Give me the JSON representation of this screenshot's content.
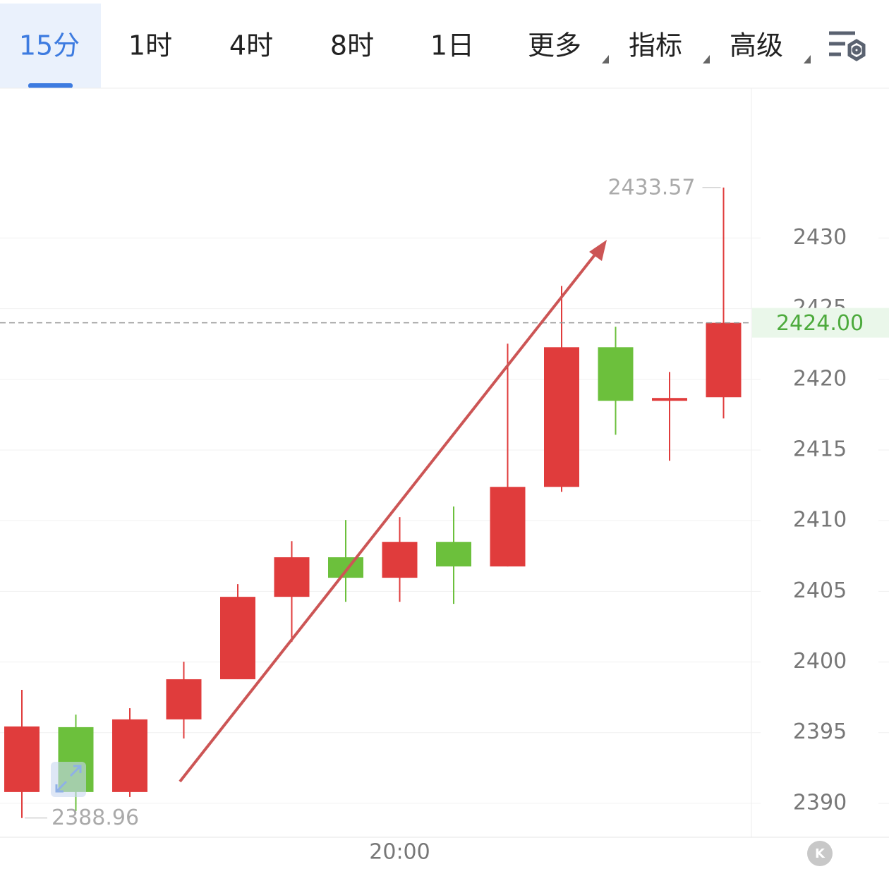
{
  "tabs": [
    "15分",
    "1时",
    "4时",
    "8时",
    "1日",
    "更多",
    "指标",
    "高级"
  ],
  "chart_data": {
    "type": "candlestick",
    "categories": [
      null,
      null,
      null,
      null,
      null,
      null,
      null,
      "20:00",
      null,
      null,
      null,
      null,
      null,
      null
    ],
    "open": [
      2390.8,
      2395.39,
      2390.8,
      2395.94,
      2398.78,
      2404.61,
      2407.41,
      2405.96,
      2408.5,
      2406.76,
      2412.39,
      2422.27,
      2418.48,
      2418.73
    ],
    "close": [
      2395.44,
      2390.8,
      2395.94,
      2398.78,
      2404.61,
      2407.41,
      2405.96,
      2408.5,
      2406.76,
      2412.39,
      2422.27,
      2418.48,
      2418.68,
      2424.0
    ],
    "high": [
      2398.03,
      2396.28,
      2396.73,
      2400.02,
      2405.51,
      2408.55,
      2410.05,
      2410.25,
      2411.0,
      2422.52,
      2426.61,
      2423.72,
      2420.52,
      2433.57
    ],
    "low": [
      2388.96,
      2389.45,
      2390.45,
      2394.59,
      2398.78,
      2401.42,
      2404.26,
      2404.26,
      2404.11,
      2406.76,
      2412.04,
      2416.08,
      2414.24,
      2417.23
    ],
    "up_color": "#e03c3c",
    "down_color": "#6cc03c",
    "ylim": [
      2387.6,
      2440.6
    ],
    "yticks": [
      2390,
      2395,
      2400,
      2405,
      2410,
      2415,
      2420,
      2425,
      2430
    ],
    "grid": true,
    "high_label": 2433.57,
    "low_label": 2388.96,
    "last_price": {
      "value": 2424,
      "label": "2424.00"
    }
  }
}
